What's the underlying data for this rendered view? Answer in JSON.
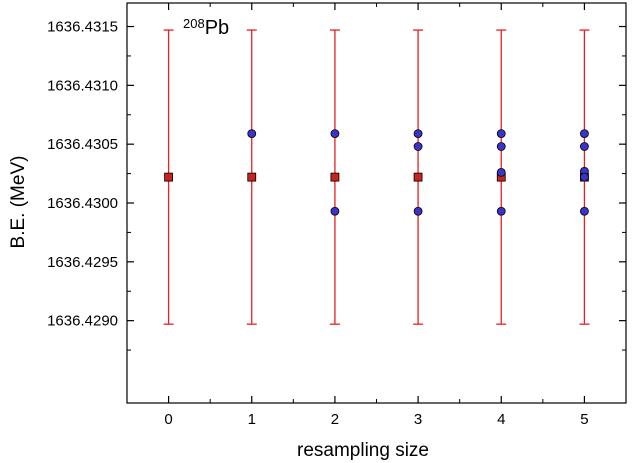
{
  "chart_data": {
    "type": "scatter",
    "annotation": {
      "superscript": "208",
      "text": "Pb"
    },
    "xlabel": "resampling size",
    "ylabel": "B.E. (MeV)",
    "xlim": [
      -0.5,
      5.5
    ],
    "ylim": [
      1636.4283,
      1636.4317
    ],
    "xticks": [
      0,
      1,
      2,
      3,
      4,
      5
    ],
    "yticks": [
      1636.429,
      1636.4295,
      1636.43,
      1636.4305,
      1636.431,
      1636.4315
    ],
    "ytick_labels": [
      "1636.4290",
      "1636.4295",
      "1636.4300",
      "1636.4305",
      "1636.4310",
      "1636.4315"
    ],
    "grid": false,
    "colors": {
      "errorbar": "#e8201f",
      "square_fill": "#c8231e",
      "circle_fill": "#3a34c8",
      "axis": "#000000"
    },
    "series": [
      {
        "marker": "square",
        "points": [
          {
            "x": 0,
            "y": 1636.43022,
            "yerr": 0.00125
          },
          {
            "x": 1,
            "y": 1636.43022,
            "yerr": 0.00125
          },
          {
            "x": 2,
            "y": 1636.43022,
            "yerr": 0.00125
          },
          {
            "x": 3,
            "y": 1636.43022,
            "yerr": 0.00125
          },
          {
            "x": 4,
            "y": 1636.43022,
            "yerr": 0.00125
          },
          {
            "x": 5,
            "y": 1636.43022,
            "yerr": 0.00125
          }
        ]
      },
      {
        "marker": "circle",
        "points": [
          {
            "x": 1,
            "y": 1636.43059
          },
          {
            "x": 2,
            "y": 1636.43059
          },
          {
            "x": 2,
            "y": 1636.42993
          },
          {
            "x": 3,
            "y": 1636.43059
          },
          {
            "x": 3,
            "y": 1636.43048
          },
          {
            "x": 3,
            "y": 1636.42993
          },
          {
            "x": 4,
            "y": 1636.43059
          },
          {
            "x": 4,
            "y": 1636.43048
          },
          {
            "x": 4,
            "y": 1636.43026
          },
          {
            "x": 4,
            "y": 1636.42993
          },
          {
            "x": 5,
            "y": 1636.43059
          },
          {
            "x": 5,
            "y": 1636.43048
          },
          {
            "x": 5,
            "y": 1636.43027
          },
          {
            "x": 5,
            "y": 1636.43022
          },
          {
            "x": 5,
            "y": 1636.42993
          }
        ]
      }
    ]
  }
}
